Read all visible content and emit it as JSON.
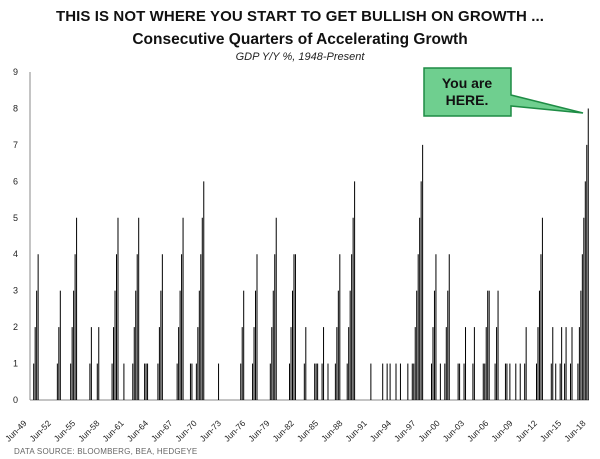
{
  "headline": "THIS IS NOT WHERE YOU START TO GET BULLISH ON GROWTH ...",
  "source": "DATA SOURCE: BLOOMBERG, BEA, HEDGEYE",
  "callout": {
    "line1": "You are",
    "line2": "HERE.",
    "fill": "#6fcf8f",
    "stroke": "#1e8c45"
  },
  "chart_data": {
    "type": "bar",
    "title": "Consecutive Quarters of Accelerating Growth",
    "subtitle": "GDP Y/Y %, 1948-Present",
    "ylim": [
      0,
      9
    ],
    "yticks": [
      0,
      1,
      2,
      3,
      4,
      5,
      6,
      7,
      8,
      9
    ],
    "xticks": [
      "Jun-49",
      "Jun-52",
      "Jun-55",
      "Jun-58",
      "Jun-61",
      "Jun-64",
      "Jun-67",
      "Jun-70",
      "Jun-73",
      "Jun-76",
      "Jun-79",
      "Jun-82",
      "Jun-85",
      "Jun-88",
      "Jun-91",
      "Jun-94",
      "Jun-97",
      "Jun-00",
      "Jun-03",
      "Jun-06",
      "Jun-09",
      "Jun-12",
      "Jun-15",
      "Jun-18"
    ],
    "x_start": "Jun-48",
    "x_end": "Jun-18",
    "bar_color": "#000000",
    "grid": false,
    "values": [
      0,
      0,
      1,
      2,
      3,
      4,
      0,
      0,
      0,
      0,
      0,
      0,
      0,
      0,
      0,
      0,
      0,
      0,
      1,
      2,
      3,
      0,
      0,
      0,
      0,
      0,
      0,
      1,
      2,
      3,
      4,
      5,
      0,
      0,
      0,
      0,
      0,
      0,
      0,
      0,
      1,
      2,
      0,
      0,
      0,
      1,
      2,
      0,
      0,
      0,
      0,
      0,
      0,
      0,
      0,
      1,
      2,
      3,
      4,
      5,
      0,
      0,
      0,
      1,
      0,
      0,
      0,
      0,
      0,
      1,
      2,
      3,
      4,
      5,
      0,
      0,
      0,
      1,
      1,
      1,
      0,
      0,
      0,
      0,
      0,
      0,
      1,
      2,
      3,
      4,
      0,
      0,
      0,
      0,
      0,
      0,
      0,
      0,
      0,
      1,
      2,
      3,
      4,
      5,
      0,
      0,
      0,
      0,
      1,
      1,
      0,
      0,
      1,
      2,
      3,
      4,
      5,
      6,
      0,
      0,
      0,
      0,
      0,
      0,
      0,
      0,
      0,
      1,
      0,
      0,
      0,
      0,
      0,
      0,
      0,
      0,
      0,
      0,
      0,
      0,
      0,
      0,
      1,
      2,
      3,
      0,
      0,
      0,
      0,
      0,
      1,
      2,
      3,
      4,
      0,
      0,
      0,
      0,
      0,
      0,
      0,
      0,
      1,
      2,
      3,
      4,
      5,
      0,
      0,
      0,
      0,
      0,
      0,
      0,
      0,
      1,
      2,
      3,
      4,
      4,
      0,
      0,
      0,
      0,
      0,
      1,
      2,
      0,
      0,
      0,
      0,
      0,
      1,
      1,
      1,
      0,
      0,
      1,
      2,
      0,
      0,
      1,
      0,
      0,
      0,
      0,
      1,
      2,
      3,
      4,
      0,
      0,
      0,
      0,
      1,
      2,
      3,
      4,
      5,
      6,
      0,
      0,
      0,
      0,
      0,
      0,
      0,
      0,
      0,
      0,
      1,
      0,
      0,
      0,
      0,
      0,
      0,
      0,
      1,
      0,
      0,
      1,
      0,
      1,
      0,
      0,
      0,
      1,
      0,
      0,
      1,
      0,
      0,
      0,
      0,
      1,
      0,
      0,
      1,
      1,
      2,
      3,
      4,
      5,
      6,
      7,
      0,
      0,
      0,
      0,
      0,
      1,
      2,
      3,
      4,
      0,
      0,
      1,
      0,
      0,
      1,
      2,
      3,
      4,
      0,
      0,
      0,
      0,
      0,
      1,
      1,
      0,
      0,
      1,
      2,
      0,
      0,
      0,
      0,
      1,
      2,
      0,
      0,
      0,
      0,
      0,
      1,
      1,
      2,
      3,
      3,
      0,
      0,
      0,
      1,
      2,
      3,
      0,
      0,
      0,
      0,
      1,
      1,
      0,
      1,
      0,
      0,
      0,
      1,
      0,
      0,
      1,
      0,
      0,
      1,
      2,
      0,
      0,
      0,
      0,
      0,
      0,
      1,
      2,
      3,
      4,
      5,
      0,
      0,
      0,
      0,
      0,
      1,
      2,
      0,
      1,
      0,
      0,
      1,
      2,
      0,
      1,
      2,
      0,
      0,
      1,
      2,
      0,
      0,
      0,
      1,
      2,
      3,
      4,
      5,
      6,
      7,
      8
    ]
  }
}
